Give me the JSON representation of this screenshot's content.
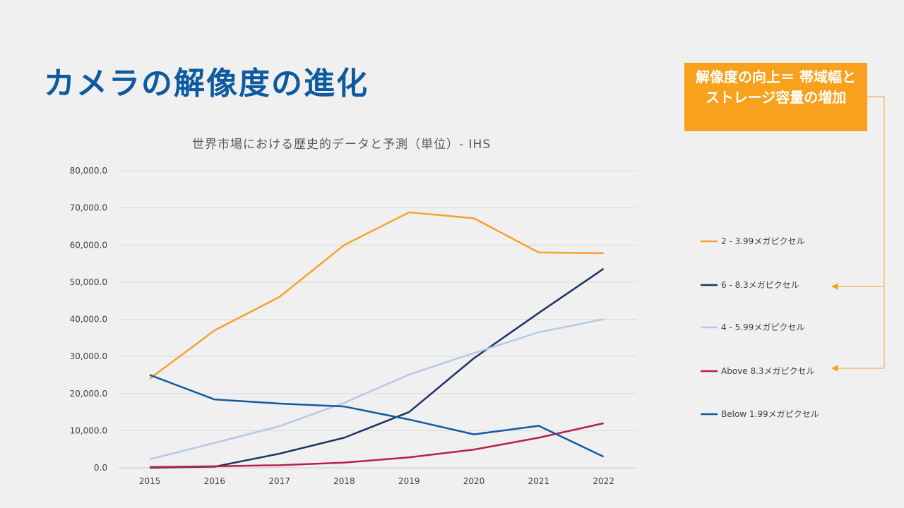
{
  "slide": {
    "title": "カメラの解像度の進化",
    "callout_text": "解像度の向上＝ 帯域幅とストレージ容量の増加"
  },
  "chart_data": {
    "type": "line",
    "title": "世界市場における歴史的データと予測（単位）- IHS",
    "x": [
      "2015",
      "2016",
      "2017",
      "2018",
      "2019",
      "2020",
      "2021",
      "2022"
    ],
    "y_ticks": [
      "0.0",
      "10,000.0",
      "20,000.0",
      "30,000.0",
      "40,000.0",
      "50,000.0",
      "60,000.0",
      "70,000.0",
      "80,000.0"
    ],
    "ylim": [
      0,
      80000
    ],
    "grid": true,
    "legend_position": "right",
    "series": [
      {
        "name": "2 - 3.99メガピクセル",
        "color": "#f7a12c",
        "values": [
          24000,
          37000,
          46000,
          60000,
          68800,
          67200,
          58000,
          57800
        ]
      },
      {
        "name": "6 - 8.3メガピクセル",
        "color": "#1c3461",
        "values": [
          0,
          300,
          3800,
          8100,
          15000,
          29500,
          41700,
          53600
        ]
      },
      {
        "name": "4 - 5.99メガピクセル",
        "color": "#b7c9e3",
        "values": [
          2300,
          6700,
          11200,
          17500,
          25100,
          30900,
          36500,
          40000
        ]
      },
      {
        "name": "Above 8.3メガピクセル",
        "color": "#b71f48",
        "values": [
          200,
          400,
          700,
          1400,
          2800,
          4900,
          8100,
          12000
        ]
      },
      {
        "name": "Below 1.99メガピクセル",
        "color": "#0f5aa1",
        "values": [
          25000,
          18400,
          17300,
          16500,
          13000,
          9000,
          11300,
          3000
        ]
      }
    ]
  }
}
